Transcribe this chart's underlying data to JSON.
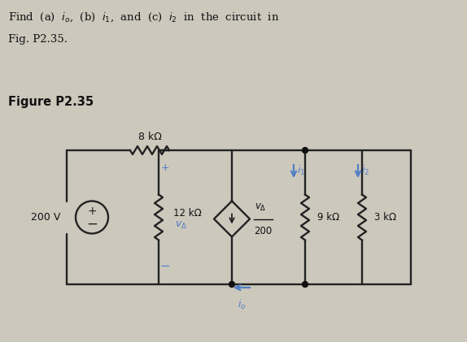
{
  "bg_color": "#ccc8bc",
  "title_text1": "Find  (a)  $i_o$,  (b)  $i_1$,  and  (c)  $i_2$  in  the  circuit  in",
  "title_text2": "Fig. P2.35.",
  "fig_label": "Figure P2.35",
  "arrow_color": "#4f7ec4",
  "line_color": "#222222",
  "dot_color": "#111111",
  "text_color": "#111111",
  "res8_label": "8 kΩ",
  "res12_label": "12 kΩ",
  "res9_label": "9 kΩ",
  "res3_label": "3 kΩ",
  "vs_label": "200 V",
  "dep_label_top": "$v_{\\Delta}$",
  "dep_label_bot": "200",
  "vdelta_label": "$v_{\\Delta}$",
  "i1_label": "$i_1$",
  "i2_label": "$i_2$",
  "io_label": "$i_o$"
}
